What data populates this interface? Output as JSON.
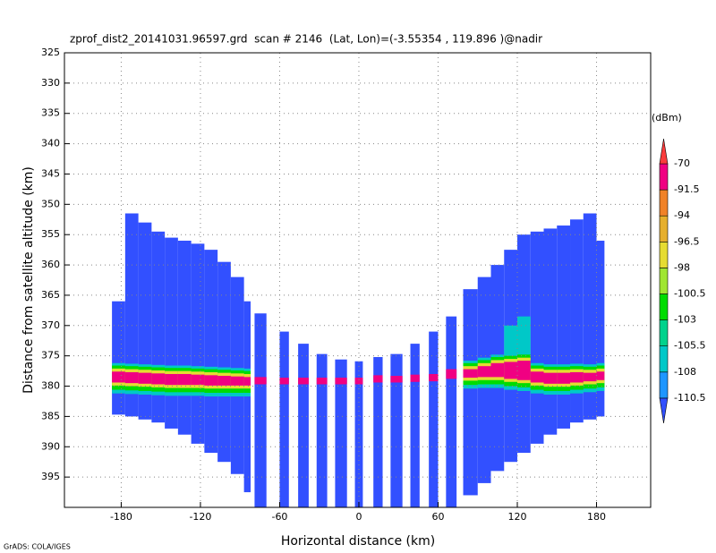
{
  "chart_data": {
    "type": "profile",
    "title": "zprof_dist2_20141031.96597.grd  scan # 2146  (Lat, Lon)=(-3.55354 , 119.896 )@nadir",
    "x_label": "Horizontal distance (km)",
    "y_label": "Distance from satellite altitude (km)",
    "xlim": [
      -223,
      221
    ],
    "ylim": [
      325,
      400
    ],
    "y_inverted": true,
    "xticks": [
      -180,
      -120,
      -60,
      0,
      60,
      120,
      180
    ],
    "yticks": [
      325,
      330,
      335,
      340,
      345,
      350,
      355,
      360,
      365,
      370,
      375,
      380,
      385,
      390,
      395
    ],
    "grid": true,
    "colorbar": {
      "label": "(dBm)",
      "levels": [
        -110.5,
        -108,
        -105.5,
        -103,
        -100.5,
        -98,
        -96.5,
        -94,
        -91.5,
        -70
      ],
      "colors": [
        "#3250ff",
        "#1e96ff",
        "#00c8c8",
        "#00d28c",
        "#00dc00",
        "#a0e632",
        "#e6dc32",
        "#e6af2d",
        "#f08228",
        "#f00082",
        "#fa3c3c"
      ]
    },
    "columns": {
      "echo_dbm": -112,
      "x_left": [
        -187,
        -177,
        -167,
        -157,
        -147,
        -137,
        -127,
        -117,
        -107,
        -97,
        -87,
        -79,
        -60,
        -46,
        -32,
        -18,
        -3,
        11,
        24,
        39,
        53,
        66,
        79,
        90,
        100,
        110,
        120,
        130,
        140,
        150,
        160,
        170,
        180
      ],
      "x_right": [
        -177,
        -167,
        -157,
        -147,
        -137,
        -127,
        -117,
        -107,
        -97,
        -87,
        -82,
        -70,
        -53,
        -38,
        -24,
        -9,
        3,
        18,
        33,
        46,
        60,
        74,
        90,
        100,
        110,
        120,
        130,
        140,
        150,
        160,
        170,
        180,
        186
      ],
      "top": [
        366,
        351.5,
        353,
        354.5,
        355.5,
        356,
        356.5,
        357.5,
        359.5,
        362,
        366,
        368,
        371,
        373,
        374.7,
        375.6,
        375.9,
        375.2,
        374.7,
        373,
        371,
        368.5,
        364,
        362,
        360,
        357.5,
        355,
        354.5,
        354,
        353.5,
        352.5,
        351.5,
        356
      ],
      "bottom": [
        384.7,
        385,
        385.5,
        386,
        387,
        388,
        389.5,
        391,
        392.5,
        394.5,
        397.5,
        400,
        400,
        400,
        400,
        400,
        400,
        400,
        400,
        400,
        400,
        400,
        398,
        396,
        394,
        392.5,
        391,
        389.5,
        388,
        387,
        386,
        385.5,
        385
      ]
    },
    "band_layers": [
      {
        "dbm": -107,
        "top": [
          376.2,
          376.3,
          376.4,
          376.5,
          376.6,
          376.6,
          376.7,
          376.8,
          376.9,
          377,
          377.1,
          null,
          null,
          null,
          null,
          null,
          null,
          null,
          null,
          null,
          null,
          null,
          375.8,
          375.3,
          374.8,
          370,
          368.5,
          376.2,
          376.4,
          376.4,
          376.3,
          376.4,
          376.2
        ],
        "bottom": [
          381.2,
          381.3,
          381.4,
          381.5,
          381.6,
          381.6,
          381.6,
          381.7,
          381.7,
          381.7,
          381.7,
          null,
          null,
          null,
          null,
          null,
          null,
          null,
          null,
          null,
          null,
          null,
          380.4,
          380.3,
          380.3,
          380.6,
          380.8,
          381.2,
          381.4,
          381.4,
          381.2,
          381,
          380.8
        ]
      },
      {
        "dbm": -101.5,
        "top": [
          376.6,
          376.7,
          376.8,
          376.9,
          377,
          377,
          377.1,
          377.2,
          377.3,
          377.4,
          377.5,
          null,
          null,
          null,
          null,
          null,
          null,
          null,
          null,
          null,
          null,
          null,
          376.2,
          375.7,
          375.2,
          375,
          374.8,
          376.6,
          376.8,
          376.8,
          376.7,
          376.8,
          376.6
        ],
        "bottom": [
          380.6,
          380.7,
          380.8,
          380.9,
          381,
          381,
          381,
          381.1,
          381.1,
          381.1,
          381.1,
          null,
          null,
          null,
          null,
          null,
          null,
          null,
          null,
          null,
          null,
          null,
          379.8,
          379.7,
          379.7,
          380,
          380.2,
          380.6,
          380.8,
          380.8,
          380.6,
          380.4,
          380.2
        ]
      },
      {
        "dbm": -97,
        "top": [
          377.1,
          377.2,
          377.3,
          377.4,
          377.5,
          377.5,
          377.6,
          377.7,
          377.8,
          377.9,
          378,
          null,
          null,
          null,
          null,
          null,
          null,
          null,
          null,
          null,
          null,
          null,
          376.7,
          376.2,
          375.7,
          375.5,
          375.3,
          377.1,
          377.3,
          377.3,
          377.2,
          377.3,
          377.1
        ],
        "bottom": [
          379.9,
          380,
          380.1,
          380.2,
          380.3,
          380.3,
          380.3,
          380.4,
          380.4,
          380.4,
          380.4,
          null,
          null,
          null,
          null,
          null,
          null,
          null,
          null,
          null,
          null,
          null,
          379.1,
          379,
          379,
          379.3,
          379.5,
          379.9,
          380.1,
          380.1,
          379.9,
          379.7,
          379.5
        ]
      },
      {
        "dbm": -85,
        "top": [
          377.6,
          377.7,
          377.8,
          377.9,
          378,
          378,
          378.1,
          378.2,
          378.3,
          378.4,
          378.5,
          378.5,
          378.6,
          378.6,
          378.6,
          378.6,
          378.6,
          378.2,
          378.3,
          378.1,
          378,
          377.2,
          377.2,
          376.7,
          376.2,
          376,
          375.8,
          377.6,
          377.8,
          377.8,
          377.7,
          377.8,
          377.6
        ],
        "bottom": [
          379.4,
          379.5,
          379.6,
          379.7,
          379.8,
          379.8,
          379.8,
          379.9,
          379.9,
          379.9,
          379.9,
          379.7,
          379.7,
          379.7,
          379.7,
          379.7,
          379.7,
          379.4,
          379.4,
          379.3,
          379.2,
          378.8,
          378.6,
          378.5,
          378.5,
          378.8,
          379,
          379.4,
          379.6,
          379.6,
          379.4,
          379.2,
          379
        ]
      }
    ]
  },
  "footer": "GrADS: COLA/IGES"
}
